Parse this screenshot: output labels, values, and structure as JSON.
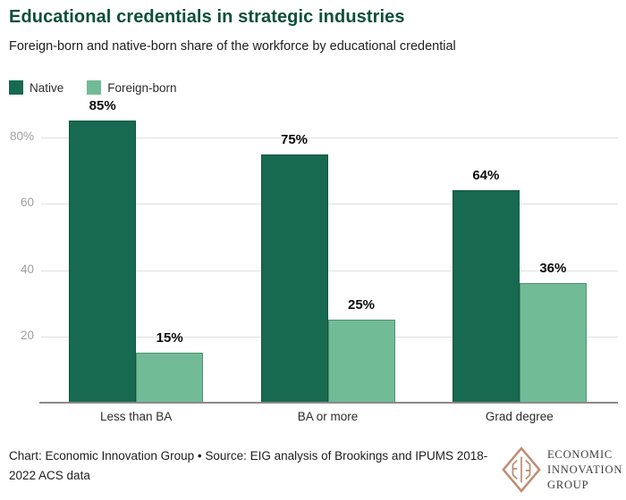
{
  "header": {
    "title": "Educational credentials in strategic industries",
    "subtitle": "Foreign-born and native-born share of the workforce by educational credential"
  },
  "colors": {
    "title_green": "#0d4f3c",
    "native_green": "#17694f",
    "foreign_green": "#72bb97",
    "gridline": "#e0e0e0",
    "axis_line": "#8a8a8a",
    "tick_label": "#9e9e9e",
    "logo_copper": "#bf8b72"
  },
  "chart_data": {
    "type": "bar",
    "categories": [
      "Less than BA",
      "BA or more",
      "Grad degree"
    ],
    "series": [
      {
        "name": "Native",
        "color": "#17694f",
        "values": [
          85,
          75,
          64
        ]
      },
      {
        "name": "Foreign-born",
        "color": "#72bb97",
        "values": [
          15,
          25,
          36
        ]
      }
    ],
    "value_label_format": "{v}%",
    "y_ticks": [
      {
        "value": 20,
        "label": "20"
      },
      {
        "value": 40,
        "label": "40"
      },
      {
        "value": 60,
        "label": "60"
      },
      {
        "value": 80,
        "label": "80%"
      }
    ],
    "ylim": [
      0,
      88
    ],
    "grid": "horizontal",
    "legend_position": "top-left",
    "legend": [
      {
        "label": "Native",
        "color": "#17694f"
      },
      {
        "label": "Foreign-born",
        "color": "#72bb97"
      }
    ],
    "title": "Educational credentials in strategic industries",
    "xlabel": "",
    "ylabel": ""
  },
  "footer": {
    "lines": [
      "Chart: Economic Innovation Group • Source: EIG analysis of Brookings and IPUMS 2018-",
      "2022 ACS data"
    ],
    "logo_lines": [
      "ECONOMIC",
      "INNOVATION",
      "GROUP"
    ]
  }
}
